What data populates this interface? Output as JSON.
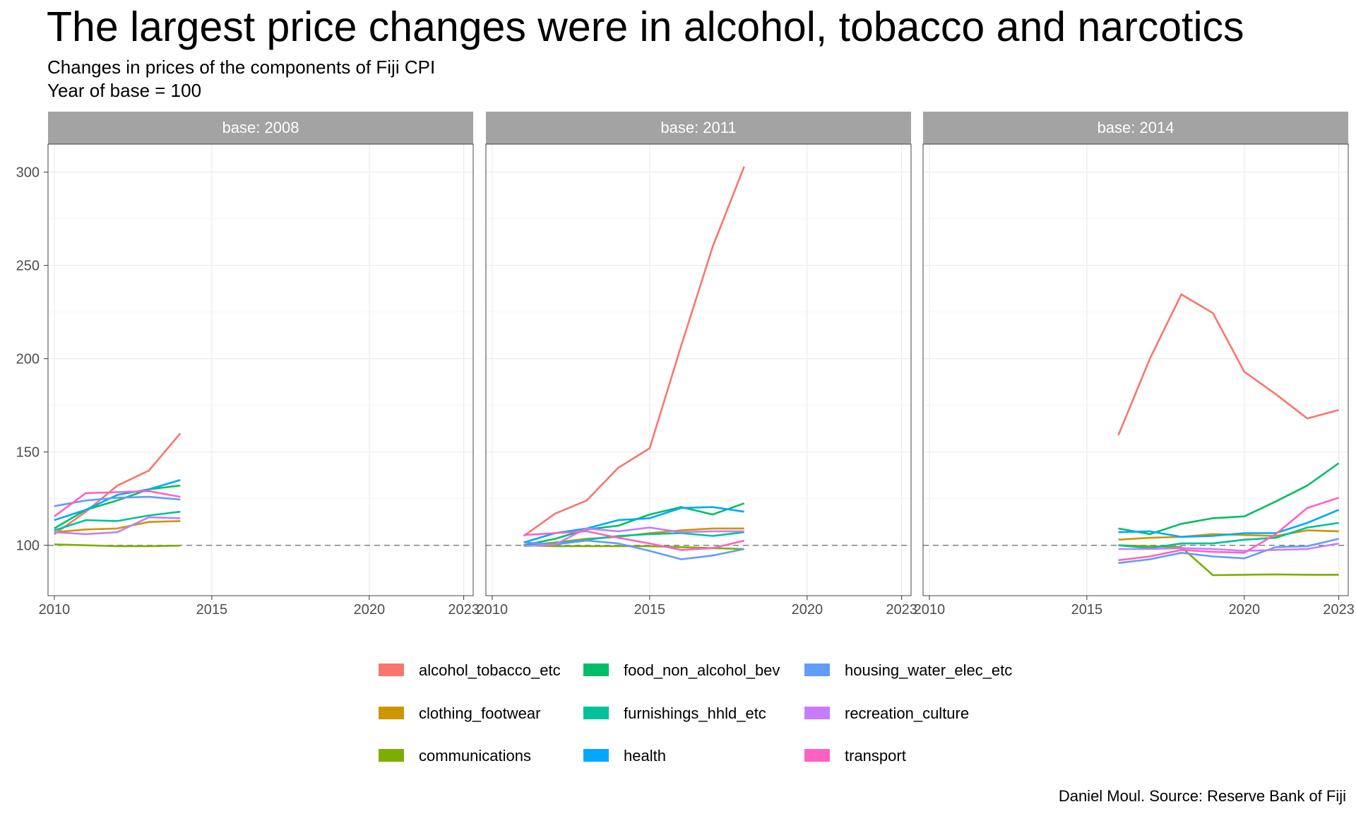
{
  "chart_data": {
    "type": "line",
    "title": "The largest price changes were in alcohol, tobacco and narcotics",
    "subtitle_lines": [
      "Changes in prices of the components of Fiji CPI",
      "Year of base = 100"
    ],
    "caption": "Daniel Moul. Source: Reserve Bank of Fiji",
    "xlabel": "",
    "ylabel": "",
    "xlim": [
      2009.8,
      2023.3
    ],
    "ylim": [
      73,
      315
    ],
    "x_ticks": [
      2010,
      2015,
      2020,
      2023
    ],
    "y_ticks": [
      100,
      150,
      200,
      250,
      300
    ],
    "reference_line": {
      "y": 100,
      "style": "dashed"
    },
    "grid": true,
    "legend_position": "bottom",
    "colors": {
      "alcohol_tobacco_etc": "#F8766D",
      "clothing_footwear": "#CD9600",
      "communications": "#7CAE00",
      "food_non_alcohol_bev": "#00BE67",
      "furnishings_hhld_etc": "#00C19A",
      "health": "#00A9FF",
      "housing_water_elec_etc": "#619CFF",
      "recreation_culture": "#C77CFF",
      "transport": "#FF61C3"
    },
    "legend_order": [
      "alcohol_tobacco_etc",
      "clothing_footwear",
      "communications",
      "food_non_alcohol_bev",
      "furnishings_hhld_etc",
      "health",
      "housing_water_elec_etc",
      "recreation_culture",
      "transport"
    ],
    "panels": [
      {
        "label": "base: 2008",
        "series": [
          {
            "name": "alcohol_tobacco_etc",
            "x": [
              2010,
              2011,
              2012,
              2013,
              2014
            ],
            "y": [
              106,
              118,
              132,
              140,
              160
            ]
          },
          {
            "name": "clothing_footwear",
            "x": [
              2010,
              2011,
              2012,
              2013,
              2014
            ],
            "y": [
              107,
              108.5,
              109,
              112.5,
              113
            ]
          },
          {
            "name": "communications",
            "x": [
              2010,
              2011,
              2012,
              2013,
              2014
            ],
            "y": [
              100.5,
              100,
              99.5,
              99.5,
              99.8
            ]
          },
          {
            "name": "food_non_alcohol_bev",
            "x": [
              2010,
              2011,
              2012,
              2013,
              2014
            ],
            "y": [
              109,
              119,
              124,
              130,
              132
            ]
          },
          {
            "name": "furnishings_hhld_etc",
            "x": [
              2010,
              2011,
              2012,
              2013,
              2014
            ],
            "y": [
              108,
              113.5,
              113,
              116,
              118
            ]
          },
          {
            "name": "health",
            "x": [
              2010,
              2011,
              2012,
              2013,
              2014
            ],
            "y": [
              113.5,
              119,
              127,
              130,
              135
            ]
          },
          {
            "name": "housing_water_elec_etc",
            "x": [
              2010,
              2011,
              2012,
              2013,
              2014
            ],
            "y": [
              121,
              124,
              125.5,
              126,
              124.5
            ]
          },
          {
            "name": "recreation_culture",
            "x": [
              2010,
              2011,
              2012,
              2013,
              2014
            ],
            "y": [
              107,
              106,
              107,
              115,
              114.5
            ]
          },
          {
            "name": "transport",
            "x": [
              2010,
              2011,
              2012,
              2013,
              2014
            ],
            "y": [
              115.5,
              128,
              128.5,
              129,
              126
            ]
          }
        ]
      },
      {
        "label": "base: 2011",
        "series": [
          {
            "name": "alcohol_tobacco_etc",
            "x": [
              2011,
              2012,
              2013,
              2014,
              2015,
              2016,
              2017,
              2018
            ],
            "y": [
              105,
              117,
              124,
              141.5,
              152,
              207,
              260,
              303
            ]
          },
          {
            "name": "clothing_footwear",
            "x": [
              2011,
              2012,
              2013,
              2014,
              2015,
              2016,
              2017,
              2018
            ],
            "y": [
              100,
              101.5,
              103.5,
              104.5,
              106.5,
              108,
              109,
              109
            ]
          },
          {
            "name": "communications",
            "x": [
              2011,
              2012,
              2013,
              2014,
              2015,
              2016,
              2017,
              2018
            ],
            "y": [
              100,
              99.5,
              99.5,
              99.5,
              99.5,
              99,
              98.5,
              98
            ]
          },
          {
            "name": "food_non_alcohol_bev",
            "x": [
              2011,
              2012,
              2013,
              2014,
              2015,
              2016,
              2017,
              2018
            ],
            "y": [
              100,
              103.5,
              108.5,
              110.5,
              116.5,
              120.5,
              116.5,
              122.5
            ]
          },
          {
            "name": "furnishings_hhld_etc",
            "x": [
              2011,
              2012,
              2013,
              2014,
              2015,
              2016,
              2017,
              2018
            ],
            "y": [
              100,
              101,
              103,
              105,
              106,
              106.5,
              105,
              107
            ]
          },
          {
            "name": "health",
            "x": [
              2011,
              2012,
              2013,
              2014,
              2015,
              2016,
              2017,
              2018
            ],
            "y": [
              101.5,
              106.5,
              109,
              113.5,
              114.5,
              120,
              120.5,
              118
            ]
          },
          {
            "name": "housing_water_elec_etc",
            "x": [
              2011,
              2012,
              2013,
              2014,
              2015,
              2016,
              2017,
              2018
            ],
            "y": [
              101.5,
              100.5,
              102.5,
              101,
              97,
              92.5,
              94.5,
              98
            ]
          },
          {
            "name": "recreation_culture",
            "x": [
              2011,
              2012,
              2013,
              2014,
              2015,
              2016,
              2017,
              2018
            ],
            "y": [
              99.5,
              100.5,
              109,
              107.5,
              109.5,
              107,
              107.5,
              107.5
            ]
          },
          {
            "name": "transport",
            "x": [
              2011,
              2012,
              2013,
              2014,
              2015,
              2016,
              2017,
              2018
            ],
            "y": [
              105.5,
              106.5,
              107.5,
              104,
              101,
              97.5,
              98.5,
              102.5
            ]
          }
        ]
      },
      {
        "label": "base: 2014",
        "series": [
          {
            "name": "alcohol_tobacco_etc",
            "x": [
              2016,
              2017,
              2018,
              2019,
              2020,
              2021,
              2022,
              2023
            ],
            "y": [
              159,
              200,
              234.5,
              224.5,
              193,
              181,
              168,
              172.5
            ]
          },
          {
            "name": "clothing_footwear",
            "x": [
              2016,
              2017,
              2018,
              2019,
              2020,
              2021,
              2022,
              2023
            ],
            "y": [
              103,
              104,
              104.5,
              106,
              105.5,
              105,
              108,
              107.5
            ]
          },
          {
            "name": "communications",
            "x": [
              2016,
              2017,
              2018,
              2019,
              2020,
              2021,
              2022,
              2023
            ],
            "y": [
              100,
              99.5,
              99,
              84,
              84.2,
              84.4,
              84.2,
              84.2
            ]
          },
          {
            "name": "food_non_alcohol_bev",
            "x": [
              2016,
              2017,
              2018,
              2019,
              2020,
              2021,
              2022,
              2023
            ],
            "y": [
              109,
              106,
              111.5,
              114.5,
              115.5,
              123.5,
              132,
              144
            ]
          },
          {
            "name": "furnishings_hhld_etc",
            "x": [
              2016,
              2017,
              2018,
              2019,
              2020,
              2021,
              2022,
              2023
            ],
            "y": [
              100,
              98.5,
              101,
              101,
              103,
              104,
              109.5,
              112
            ]
          },
          {
            "name": "health",
            "x": [
              2016,
              2017,
              2018,
              2019,
              2020,
              2021,
              2022,
              2023
            ],
            "y": [
              107,
              107.5,
              104.5,
              105,
              106.5,
              106.5,
              112,
              119
            ]
          },
          {
            "name": "housing_water_elec_etc",
            "x": [
              2016,
              2017,
              2018,
              2019,
              2020,
              2021,
              2022,
              2023
            ],
            "y": [
              90.5,
              92.5,
              96,
              94,
              93,
              99,
              99.5,
              103.5
            ]
          },
          {
            "name": "recreation_culture",
            "x": [
              2016,
              2017,
              2018,
              2019,
              2020,
              2021,
              2022,
              2023
            ],
            "y": [
              98,
              98,
              98.5,
              98,
              97,
              97.5,
              98,
              101
            ]
          },
          {
            "name": "transport",
            "x": [
              2016,
              2017,
              2018,
              2019,
              2020,
              2021,
              2022,
              2023
            ],
            "y": [
              92,
              94,
              97.5,
              96.5,
              96,
              106,
              120,
              125.5
            ]
          }
        ]
      }
    ]
  }
}
